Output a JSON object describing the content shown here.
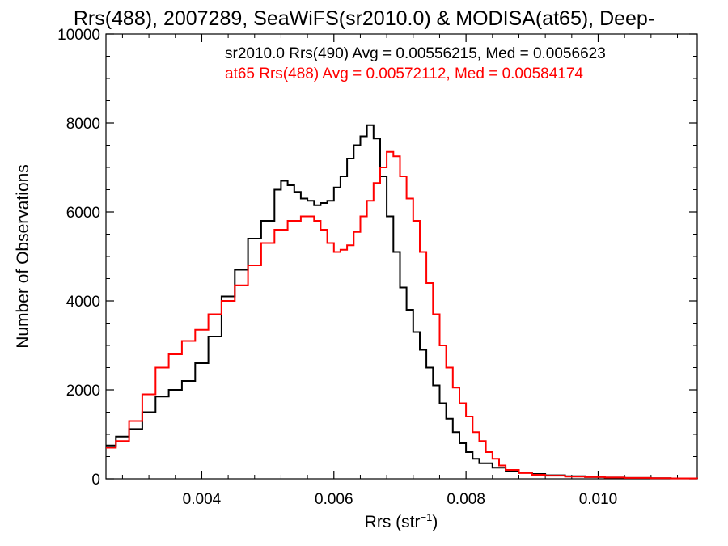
{
  "chart_data": {
    "type": "line",
    "title": "Rrs(488), 2007289, SeaWiFS(sr2010.0) & MODISA(at65), Deep-",
    "xlabel": "Rrs (str",
    "xlabel_sup": "−1",
    "xlabel_close": ")",
    "ylabel": "Number of Observations",
    "xlim": [
      0.00255,
      0.0115
    ],
    "ylim": [
      0,
      10000
    ],
    "x_ticks": [
      0.004,
      0.006,
      0.008,
      0.01
    ],
    "x_tick_labels": [
      "0.004",
      "0.006",
      "0.008",
      "0.010"
    ],
    "y_ticks": [
      0,
      2000,
      4000,
      6000,
      8000,
      10000
    ],
    "y_tick_labels": [
      "0",
      "2000",
      "4000",
      "6000",
      "8000",
      "10000"
    ],
    "grid": false,
    "legend_placement": "top-right",
    "series": [
      {
        "name": "sr2010.0 Rrs(490) Avg = 0.00556215, Med = 0.0056623",
        "color": "#000000",
        "step": "post",
        "x": [
          0.00255,
          0.0027,
          0.0029,
          0.0031,
          0.0033,
          0.0035,
          0.0037,
          0.0039,
          0.0041,
          0.0043,
          0.0045,
          0.0047,
          0.0049,
          0.0051,
          0.0052,
          0.0053,
          0.0054,
          0.0055,
          0.0056,
          0.0057,
          0.0058,
          0.0059,
          0.006,
          0.0061,
          0.0062,
          0.0063,
          0.0064,
          0.0065,
          0.0066,
          0.0067,
          0.0068,
          0.0069,
          0.007,
          0.0071,
          0.0072,
          0.0073,
          0.0074,
          0.0075,
          0.0076,
          0.0077,
          0.0078,
          0.0079,
          0.008,
          0.0081,
          0.0082,
          0.0084,
          0.0086,
          0.0088,
          0.009,
          0.0092,
          0.0095,
          0.0098,
          0.0101,
          0.0104,
          0.0108,
          0.0111,
          0.0115
        ],
        "values": [
          750,
          950,
          1120,
          1500,
          1850,
          2000,
          2200,
          2600,
          3200,
          4100,
          4700,
          5400,
          5800,
          6500,
          6700,
          6600,
          6450,
          6300,
          6250,
          6150,
          6200,
          6250,
          6550,
          6800,
          7200,
          7500,
          7700,
          7950,
          7650,
          6800,
          5900,
          5100,
          4300,
          3800,
          3300,
          2900,
          2500,
          2100,
          1700,
          1350,
          1050,
          800,
          600,
          450,
          350,
          250,
          180,
          140,
          110,
          80,
          60,
          40,
          30,
          20,
          15,
          10,
          5
        ]
      },
      {
        "name": "at65 Rrs(488) Avg = 0.00572112, Med = 0.00584174",
        "color": "#ff0000",
        "step": "post",
        "x": [
          0.00255,
          0.0027,
          0.0029,
          0.0031,
          0.0033,
          0.0035,
          0.0037,
          0.0039,
          0.0041,
          0.0043,
          0.0045,
          0.0047,
          0.0049,
          0.0051,
          0.0053,
          0.0055,
          0.0056,
          0.0057,
          0.0058,
          0.0059,
          0.006,
          0.0061,
          0.0062,
          0.0063,
          0.0064,
          0.0065,
          0.0066,
          0.0067,
          0.0068,
          0.0069,
          0.007,
          0.0071,
          0.0072,
          0.0073,
          0.0074,
          0.0075,
          0.0076,
          0.0077,
          0.0078,
          0.0079,
          0.008,
          0.0081,
          0.0082,
          0.0083,
          0.0084,
          0.0085,
          0.0086,
          0.0088,
          0.009,
          0.0092,
          0.0095,
          0.0098,
          0.0101,
          0.0104,
          0.0108,
          0.0111,
          0.0115
        ],
        "values": [
          700,
          850,
          1300,
          1900,
          2500,
          2800,
          3100,
          3350,
          3700,
          4000,
          4350,
          4800,
          5300,
          5600,
          5800,
          5900,
          5900,
          5800,
          5600,
          5300,
          5100,
          5150,
          5250,
          5550,
          5900,
          6250,
          6650,
          7000,
          7350,
          7250,
          6800,
          6300,
          5800,
          5100,
          4400,
          3700,
          3000,
          2500,
          2050,
          1700,
          1400,
          1050,
          850,
          600,
          450,
          300,
          200,
          130,
          90,
          70,
          50,
          40,
          30,
          20,
          15,
          10,
          5
        ]
      }
    ]
  }
}
